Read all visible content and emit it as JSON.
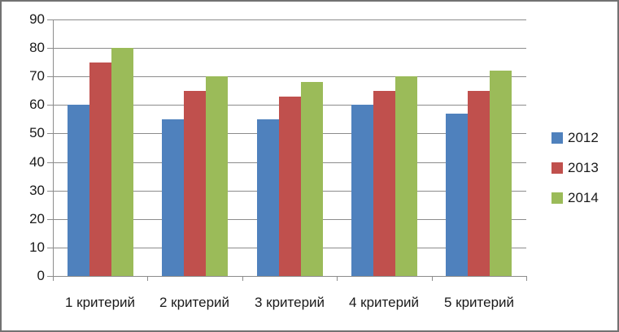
{
  "frame": {
    "background": "#FFFFFF",
    "border_color": "#727272"
  },
  "chart_data": {
    "type": "bar",
    "title": "",
    "xlabel": "",
    "ylabel": "",
    "categories": [
      "1 критерий",
      "2 критерий",
      "3 критерий",
      "4 критерий",
      "5 критерий"
    ],
    "series": [
      {
        "name": "2012",
        "color": "#4F81BD",
        "values": [
          60,
          55,
          55,
          60,
          57
        ]
      },
      {
        "name": "2013",
        "color": "#C0504D",
        "values": [
          75,
          65,
          63,
          65,
          65
        ]
      },
      {
        "name": "2014",
        "color": "#9BBB59",
        "values": [
          80,
          70,
          68,
          70,
          72
        ]
      }
    ],
    "ylim": [
      0,
      90
    ],
    "yticks": [
      0,
      10,
      20,
      30,
      40,
      50,
      60,
      70,
      80,
      90
    ],
    "grid": true,
    "legend_position": "right",
    "legend_labels": [
      "2012",
      "2013",
      "2014"
    ],
    "gridline_color": "#8C8C8C",
    "axis_color": "#8C8C8C",
    "text_color": "#1A1A1A"
  }
}
